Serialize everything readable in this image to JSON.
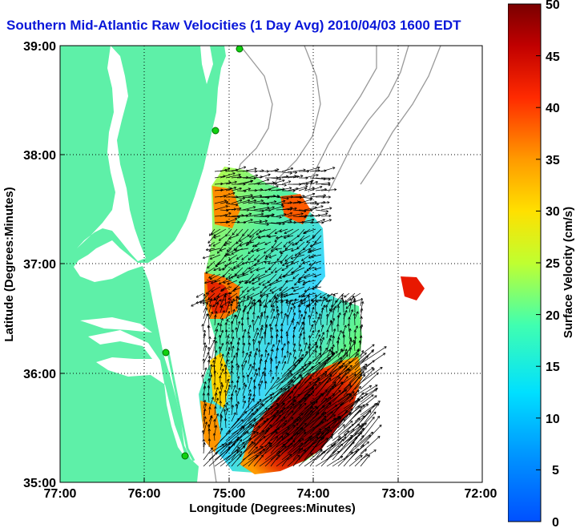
{
  "title": "Southern Mid-Atlantic Raw Velocities (1 Day Avg) 2010/04/03 1600 EDT",
  "map": {
    "xlabel": "Longitude (Degrees:Minutes)",
    "ylabel": "Latitude (Degrees:Minutes)",
    "lon_ticks": [
      "77:00",
      "76:00",
      "75:00",
      "74:00",
      "73:00",
      "72:00"
    ],
    "lat_ticks": [
      "39:00",
      "38:00",
      "37:00",
      "36:00",
      "35:00"
    ],
    "lon_range": [
      -77,
      -72
    ],
    "lat_range": [
      35,
      39
    ],
    "land_color": "#5ef0a8",
    "grid": "dotted"
  },
  "colorbar": {
    "label": "Surface Velocity (cm/s)",
    "ticks": [
      "50",
      "45",
      "40",
      "35",
      "30",
      "25",
      "20",
      "15",
      "10",
      "5",
      "0"
    ],
    "range": [
      0,
      50
    ]
  }
}
